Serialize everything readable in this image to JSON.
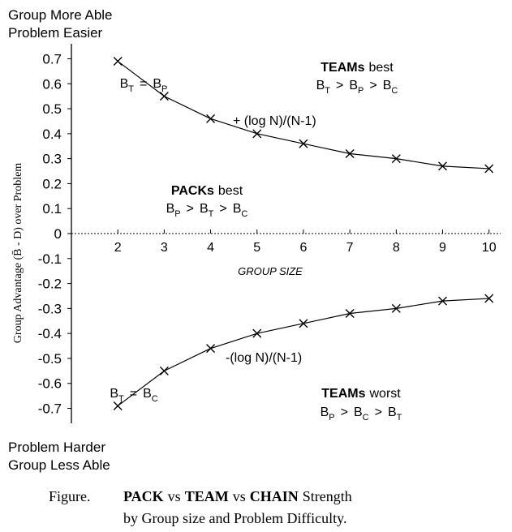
{
  "chart_data": {
    "type": "line",
    "corner_labels": {
      "top": [
        "Group More Able",
        "Problem Easier"
      ],
      "bottom": [
        "Problem Harder",
        "Group Less Able"
      ]
    },
    "y_label": "Group Advantage (B̄ - D) over Problem",
    "x_label": "GROUP SIZE",
    "x": [
      2,
      3,
      4,
      5,
      6,
      7,
      8,
      9,
      10
    ],
    "series": [
      {
        "color": "#000000",
        "marker": "x",
        "values": [
          0.69,
          0.55,
          0.46,
          0.4,
          0.36,
          0.32,
          0.3,
          0.27,
          0.26
        ]
      },
      {
        "color": "#000000",
        "marker": "x",
        "values": [
          -0.69,
          -0.55,
          -0.46,
          -0.4,
          -0.36,
          -0.32,
          -0.3,
          -0.27,
          -0.26
        ]
      }
    ],
    "xlim": [
      1,
      10.25
    ],
    "xticks": [
      2,
      3,
      4,
      5,
      6,
      7,
      8,
      9,
      10
    ],
    "ylim": [
      -0.76,
      0.76
    ],
    "yticks": [
      0.7,
      0.6,
      0.5,
      0.4,
      0.3,
      0.2,
      0.1,
      0,
      -0.1,
      -0.2,
      -0.3,
      -0.4,
      -0.5,
      -0.6,
      -0.7
    ],
    "region_labels": [
      {
        "bold": "TEAMs",
        "text": "best",
        "formula": [
          {
            "text": "B",
            "sub": "T"
          },
          ">",
          {
            "text": "B",
            "sub": "P"
          },
          ">",
          {
            "text": "B",
            "sub": "C"
          }
        ]
      },
      {
        "bold": "PACKs",
        "text": "best",
        "formula": [
          {
            "text": "B",
            "sub": "P"
          },
          ">",
          {
            "text": "B",
            "sub": "T"
          },
          ">",
          {
            "text": "B",
            "sub": "C"
          }
        ]
      },
      {
        "bold": "TEAMs",
        "text": "worst",
        "formula": [
          {
            "text": "B",
            "sub": "P"
          },
          ">",
          {
            "text": "B",
            "sub": "C"
          },
          ">",
          {
            "text": "B",
            "sub": "T"
          }
        ]
      }
    ],
    "equality_labels": [
      [
        {
          "text": "B",
          "sub": "T"
        },
        "=",
        {
          "text": "B",
          "sub": "P"
        }
      ],
      [
        {
          "text": "B",
          "sub": "T"
        },
        "=",
        {
          "text": "B",
          "sub": "C"
        }
      ]
    ],
    "curve_labels": [
      "+ (log N)/(N-1)",
      "-(log N)/(N-1)"
    ]
  },
  "caption": {
    "label": "Figure.",
    "line1": [
      {
        "text": "PACK",
        "bold": true
      },
      {
        "text": "vs",
        "bold": false
      },
      {
        "text": "TEAM",
        "bold": true
      },
      {
        "text": "vs",
        "bold": false
      },
      {
        "text": "CHAIN",
        "bold": true
      },
      {
        "text": "Strength",
        "bold": false
      }
    ],
    "line2": "by Group size and Problem Difficulty."
  }
}
